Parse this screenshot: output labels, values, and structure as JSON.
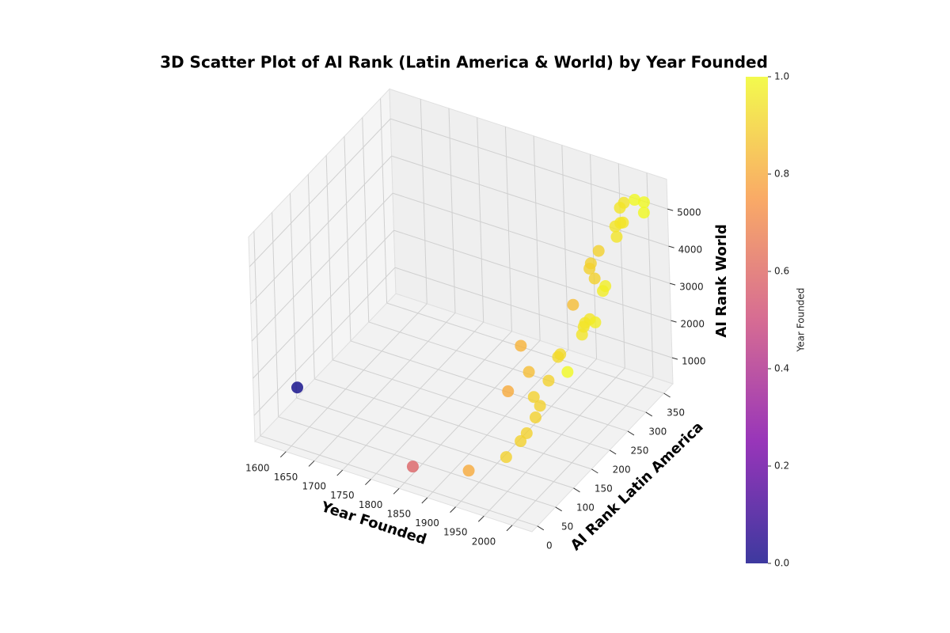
{
  "chart_data": {
    "type": "scatter3d",
    "title": "3D Scatter Plot of AI Rank (Latin America & World) by Year Founded",
    "xlabel": "Year Founded",
    "ylabel": "AI Rank Latin America",
    "zlabel": "AI Rank World",
    "cmap": "plasma",
    "x": [
      1551,
      1815,
      1910,
      1955,
      1955,
      1955,
      1955,
      1955,
      1955,
      1910,
      1933,
      1955,
      2000,
      1920,
      1964,
      1964,
      1978,
      1978,
      1978,
      1978,
      1987,
      1933,
      1987,
      1987,
      1955,
      1955,
      1955,
      1955,
      1978,
      1978,
      1978,
      1978,
      1978,
      1978,
      2000,
      2000,
      2000
    ],
    "y": [
      94,
      1,
      8,
      42,
      82,
      99,
      124,
      137,
      121,
      120,
      143,
      162,
      146,
      143,
      176,
      182,
      221,
      226,
      230,
      243,
      244,
      267,
      267,
      274,
      281,
      294,
      285,
      307,
      322,
      319,
      333,
      340,
      333,
      344,
      340,
      364,
      365
    ],
    "z": [
      670,
      800,
      1090,
      1330,
      1350,
      1390,
      1560,
      1740,
      2140,
      2080,
      2480,
      2160,
      2780,
      3120,
      2700,
      2710,
      2910,
      3070,
      3130,
      3100,
      3050,
      3020,
      3660,
      3720,
      3960,
      3560,
      4060,
      4170,
      4510,
      4820,
      4770,
      4710,
      5180,
      5200,
      5430,
      4840,
      5110
    ],
    "xlim": [
      1545,
      2035
    ],
    "ylim": [
      -15,
      375
    ],
    "zlim": [
      300,
      5800
    ],
    "xticks": [
      1600,
      1650,
      1700,
      1750,
      1800,
      1850,
      1900,
      1950,
      2000
    ],
    "yticks": [
      0,
      50,
      100,
      150,
      200,
      250,
      300,
      350
    ],
    "zticks": [
      1000,
      2000,
      3000,
      4000,
      5000
    ],
    "grid": true,
    "colorbar": {
      "label": "Year Founded",
      "clim": [
        0,
        1
      ],
      "ticks": [
        {
          "value": 0,
          "label": "0.0"
        },
        {
          "value": 0.2,
          "label": "0.2"
        },
        {
          "value": 0.4,
          "label": "0.4"
        },
        {
          "value": 0.6,
          "label": "0.6"
        },
        {
          "value": 0.8,
          "label": "0.8"
        },
        {
          "value": 1,
          "label": "1.0"
        }
      ]
    }
  }
}
